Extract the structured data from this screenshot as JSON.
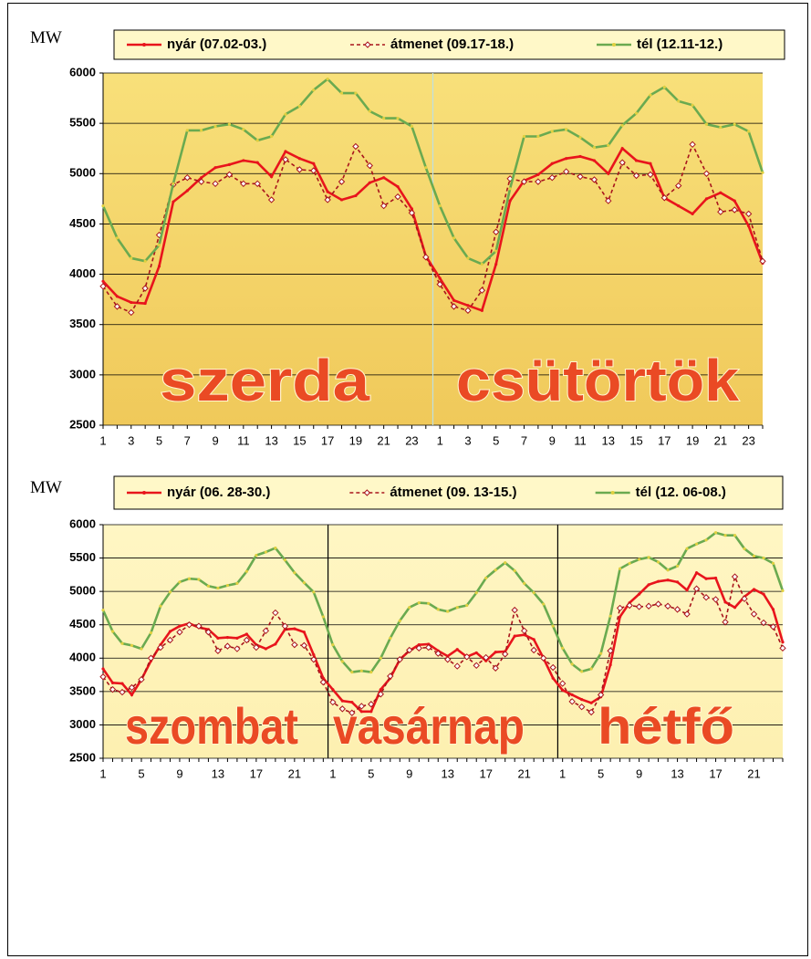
{
  "chart_data": [
    {
      "type": "line",
      "y_label": "MW",
      "categories": [
        1,
        null,
        3,
        null,
        5,
        null,
        7,
        null,
        9,
        null,
        11,
        null,
        13,
        null,
        15,
        null,
        17,
        null,
        19,
        null,
        21,
        null,
        23,
        null,
        1,
        null,
        3,
        null,
        5,
        null,
        7,
        null,
        9,
        null,
        11,
        null,
        13,
        null,
        15,
        null,
        17,
        null,
        19,
        null,
        21,
        null,
        23,
        null
      ],
      "annotations": [
        "szerda",
        "csütörtök"
      ],
      "ylim": [
        2500,
        6000
      ],
      "yticks": [
        2500,
        3000,
        3500,
        4000,
        4500,
        5000,
        5500,
        6000
      ],
      "grid": true,
      "series": [
        {
          "name": "nyár (07.02-03.)",
          "color": "#e8141c",
          "values": [
            3930,
            3780,
            3720,
            3710,
            4080,
            4720,
            4830,
            4960,
            5060,
            5090,
            5130,
            5110,
            4970,
            5220,
            5150,
            5100,
            4820,
            4740,
            4780,
            4910,
            4960,
            4870,
            4650,
            4180,
            3960,
            3740,
            3690,
            3640,
            4100,
            4730,
            4930,
            4990,
            5100,
            5150,
            5170,
            5130,
            5000,
            5250,
            5130,
            5100,
            4760,
            4680,
            4600,
            4750,
            4810,
            4730,
            4480,
            4110
          ]
        },
        {
          "name": "átmenet (09.17-18.)",
          "color": "#a8141c",
          "values": [
            3880,
            3680,
            3620,
            3860,
            4390,
            4890,
            4960,
            4920,
            4900,
            4990,
            4900,
            4900,
            4740,
            5140,
            5040,
            5030,
            4740,
            4920,
            5270,
            5080,
            4680,
            4770,
            4610,
            4170,
            3900,
            3680,
            3640,
            3840,
            4420,
            4950,
            4920,
            4920,
            4960,
            5020,
            4970,
            4940,
            4730,
            5110,
            4980,
            4990,
            4760,
            4880,
            5290,
            5000,
            4620,
            4640,
            4600,
            4130
          ]
        },
        {
          "name": "tél (12.11-12.)",
          "color": "#6aaa50",
          "values": [
            4680,
            4360,
            4160,
            4130,
            4290,
            4900,
            5430,
            5430,
            5470,
            5490,
            5440,
            5330,
            5370,
            5590,
            5670,
            5830,
            5940,
            5800,
            5800,
            5620,
            5550,
            5550,
            5470,
            5060,
            4680,
            4360,
            4160,
            4100,
            4230,
            4850,
            5370,
            5370,
            5420,
            5440,
            5360,
            5260,
            5280,
            5480,
            5600,
            5780,
            5860,
            5720,
            5680,
            5490,
            5460,
            5490,
            5420,
            5010
          ]
        }
      ]
    },
    {
      "type": "line",
      "y_label": "MW",
      "categories": [
        1,
        null,
        null,
        null,
        5,
        null,
        null,
        null,
        9,
        null,
        null,
        null,
        13,
        null,
        null,
        null,
        17,
        null,
        null,
        null,
        21,
        null,
        null,
        null,
        1,
        null,
        null,
        null,
        5,
        null,
        null,
        null,
        9,
        null,
        null,
        null,
        13,
        null,
        null,
        null,
        17,
        null,
        null,
        null,
        21,
        null,
        null,
        null,
        1,
        null,
        null,
        null,
        5,
        null,
        null,
        null,
        9,
        null,
        null,
        null,
        13,
        null,
        null,
        null,
        17,
        null,
        null,
        null,
        21,
        null,
        null,
        null
      ],
      "annotations": [
        "szombat",
        "vasárnap",
        "hétfő"
      ],
      "ylim": [
        2500,
        6000
      ],
      "yticks": [
        2500,
        3000,
        3500,
        4000,
        4500,
        5000,
        5500,
        6000
      ],
      "grid": true,
      "series": [
        {
          "name": "nyár (06. 28-30.)",
          "color": "#e8141c",
          "values": [
            3840,
            3630,
            3620,
            3450,
            3680,
            3960,
            4200,
            4400,
            4480,
            4520,
            4460,
            4430,
            4300,
            4310,
            4300,
            4360,
            4200,
            4140,
            4210,
            4430,
            4440,
            4390,
            4050,
            3700,
            3530,
            3360,
            3340,
            3200,
            3200,
            3530,
            3700,
            3980,
            4110,
            4200,
            4210,
            4110,
            4030,
            4130,
            4020,
            4080,
            3960,
            4090,
            4100,
            4330,
            4350,
            4280,
            4000,
            3700,
            3520,
            3450,
            3380,
            3330,
            3420,
            3900,
            4620,
            4830,
            4960,
            5100,
            5150,
            5170,
            5140,
            5020,
            5280,
            5190,
            5200,
            4840,
            4760,
            4920,
            5030,
            4960,
            4730,
            4240
          ]
        },
        {
          "name": "átmenet (09. 13-15.)",
          "color": "#a8141c",
          "values": [
            3720,
            3530,
            3490,
            3560,
            3680,
            4000,
            4160,
            4270,
            4390,
            4500,
            4480,
            4390,
            4110,
            4180,
            4140,
            4270,
            4160,
            4410,
            4680,
            4480,
            4200,
            4190,
            3980,
            3640,
            3340,
            3240,
            3180,
            3280,
            3310,
            3460,
            3730,
            3980,
            4120,
            4150,
            4160,
            4070,
            3980,
            3880,
            4020,
            3890,
            4010,
            3850,
            4060,
            4720,
            4410,
            4120,
            4000,
            3860,
            3620,
            3350,
            3270,
            3190,
            3450,
            4110,
            4750,
            4790,
            4770,
            4780,
            4810,
            4780,
            4730,
            4660,
            5040,
            4910,
            4880,
            4540,
            5220,
            4890,
            4660,
            4530,
            4470,
            4150
          ]
        },
        {
          "name": "tél (12. 06-08.)",
          "color": "#6aaa50",
          "values": [
            4720,
            4400,
            4220,
            4190,
            4140,
            4380,
            4780,
            4990,
            5140,
            5190,
            5180,
            5080,
            5050,
            5090,
            5120,
            5300,
            5540,
            5590,
            5650,
            5470,
            5280,
            5130,
            4990,
            4620,
            4200,
            3950,
            3790,
            3810,
            3790,
            4000,
            4300,
            4560,
            4760,
            4830,
            4820,
            4730,
            4700,
            4760,
            4790,
            4980,
            5200,
            5320,
            5430,
            5310,
            5120,
            4980,
            4810,
            4480,
            4150,
            3910,
            3800,
            3840,
            4070,
            4630,
            5340,
            5420,
            5480,
            5510,
            5440,
            5320,
            5380,
            5640,
            5710,
            5770,
            5880,
            5840,
            5840,
            5640,
            5530,
            5500,
            5420,
            5010
          ]
        }
      ]
    }
  ]
}
